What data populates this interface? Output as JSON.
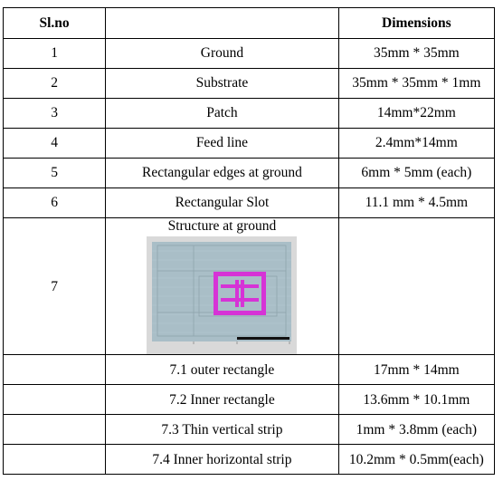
{
  "table": {
    "headers": [
      "Sl.no",
      "",
      "Dimensions"
    ],
    "rows": [
      {
        "sl": "1",
        "name": "Ground",
        "dim": "35mm * 35mm"
      },
      {
        "sl": "2",
        "name": "Substrate",
        "dim": "35mm * 35mm * 1mm"
      },
      {
        "sl": "3",
        "name": "Patch",
        "dim": "14mm*22mm"
      },
      {
        "sl": "4",
        "name": "Feed line",
        "dim": "2.4mm*14mm"
      },
      {
        "sl": "5",
        "name": "Rectangular edges at ground",
        "dim": "6mm * 5mm (each)"
      },
      {
        "sl": "6",
        "name": "Rectangular Slot",
        "dim": "11.1 mm * 4.5mm"
      }
    ],
    "structure_row": {
      "sl": "7",
      "name": "Structure at ground",
      "dim": ""
    },
    "sub_rows": [
      {
        "name": "7.1 outer rectangle",
        "dim": "17mm * 14mm"
      },
      {
        "name": "7.2 Inner rectangle",
        "dim": "13.6mm * 10.1mm"
      },
      {
        "name": "7.3 Thin vertical strip",
        "dim": "1mm * 3.8mm (each)"
      },
      {
        "name": "7.4 Inner horizontal strip",
        "dim": "10.2mm * 0.5mm(each)"
      }
    ]
  },
  "figure": {
    "background_color": "#a9bec7",
    "frame_color": "#d9d9d9",
    "slot_color": "#d633d6",
    "scale_bar_color": "#111111"
  }
}
